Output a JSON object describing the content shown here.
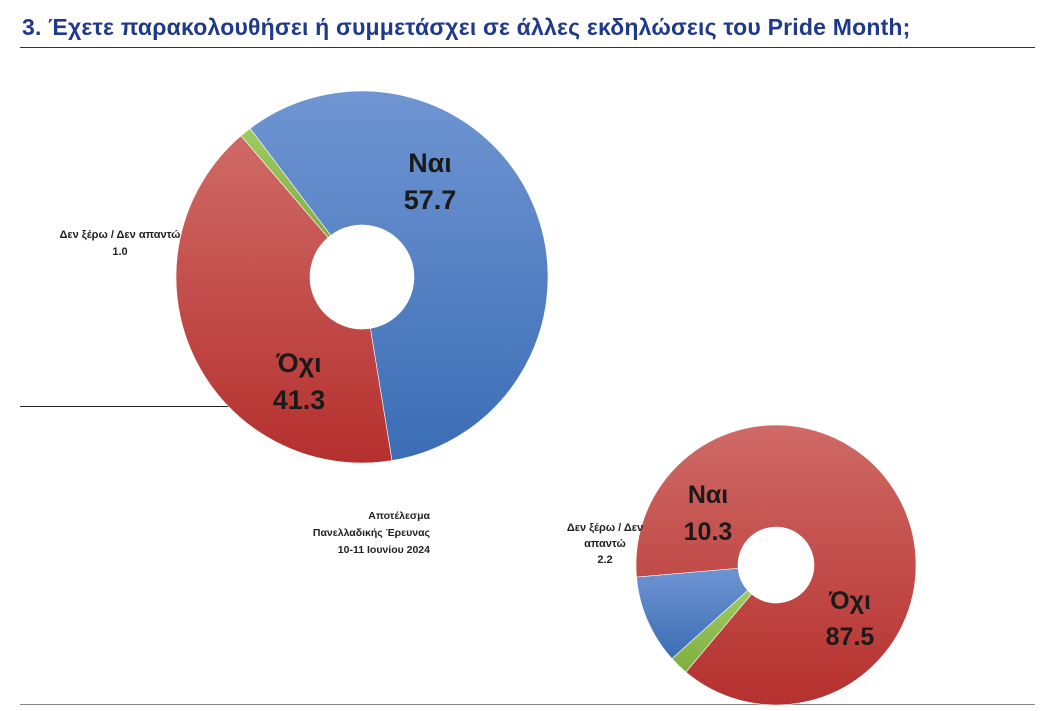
{
  "title": "3. Έχετε παρακολουθήσει ή συμμετάσχει σε άλλες εκδηλώσεις του Pride Month;",
  "source": {
    "line1": "Αποτέλεσμα",
    "line2": "Πανελλαδικής Έρευνας",
    "line3": "10-11 Ιουνίου 2024"
  },
  "colors": {
    "yes": "#4a7cc2",
    "no": "#c0403e",
    "dk": "#8fbf4e"
  },
  "chart_data": [
    {
      "type": "pie",
      "donut": true,
      "categories": [
        "Ναι",
        "Όχι",
        "Δεν ξέρω / Δεν απαντώ"
      ],
      "values": [
        57.7,
        41.3,
        1.0
      ],
      "labels": [
        "Ναι",
        "Όχι",
        "Δεν ξέρω / Δεν απαντώ"
      ],
      "value_labels": [
        "57.7",
        "41.3",
        "1.0"
      ],
      "legend": "none"
    },
    {
      "type": "pie",
      "donut": true,
      "categories": [
        "Ναι",
        "Όχι",
        "Δεν ξέρω / Δεν απαντώ"
      ],
      "values": [
        10.3,
        87.5,
        2.2
      ],
      "labels": [
        "Ναι",
        "Όχι",
        "Δεν ξέρω / Δεν απαντώ"
      ],
      "value_labels": [
        "10.3",
        "87.5",
        "2.2"
      ],
      "legend": "none"
    }
  ]
}
